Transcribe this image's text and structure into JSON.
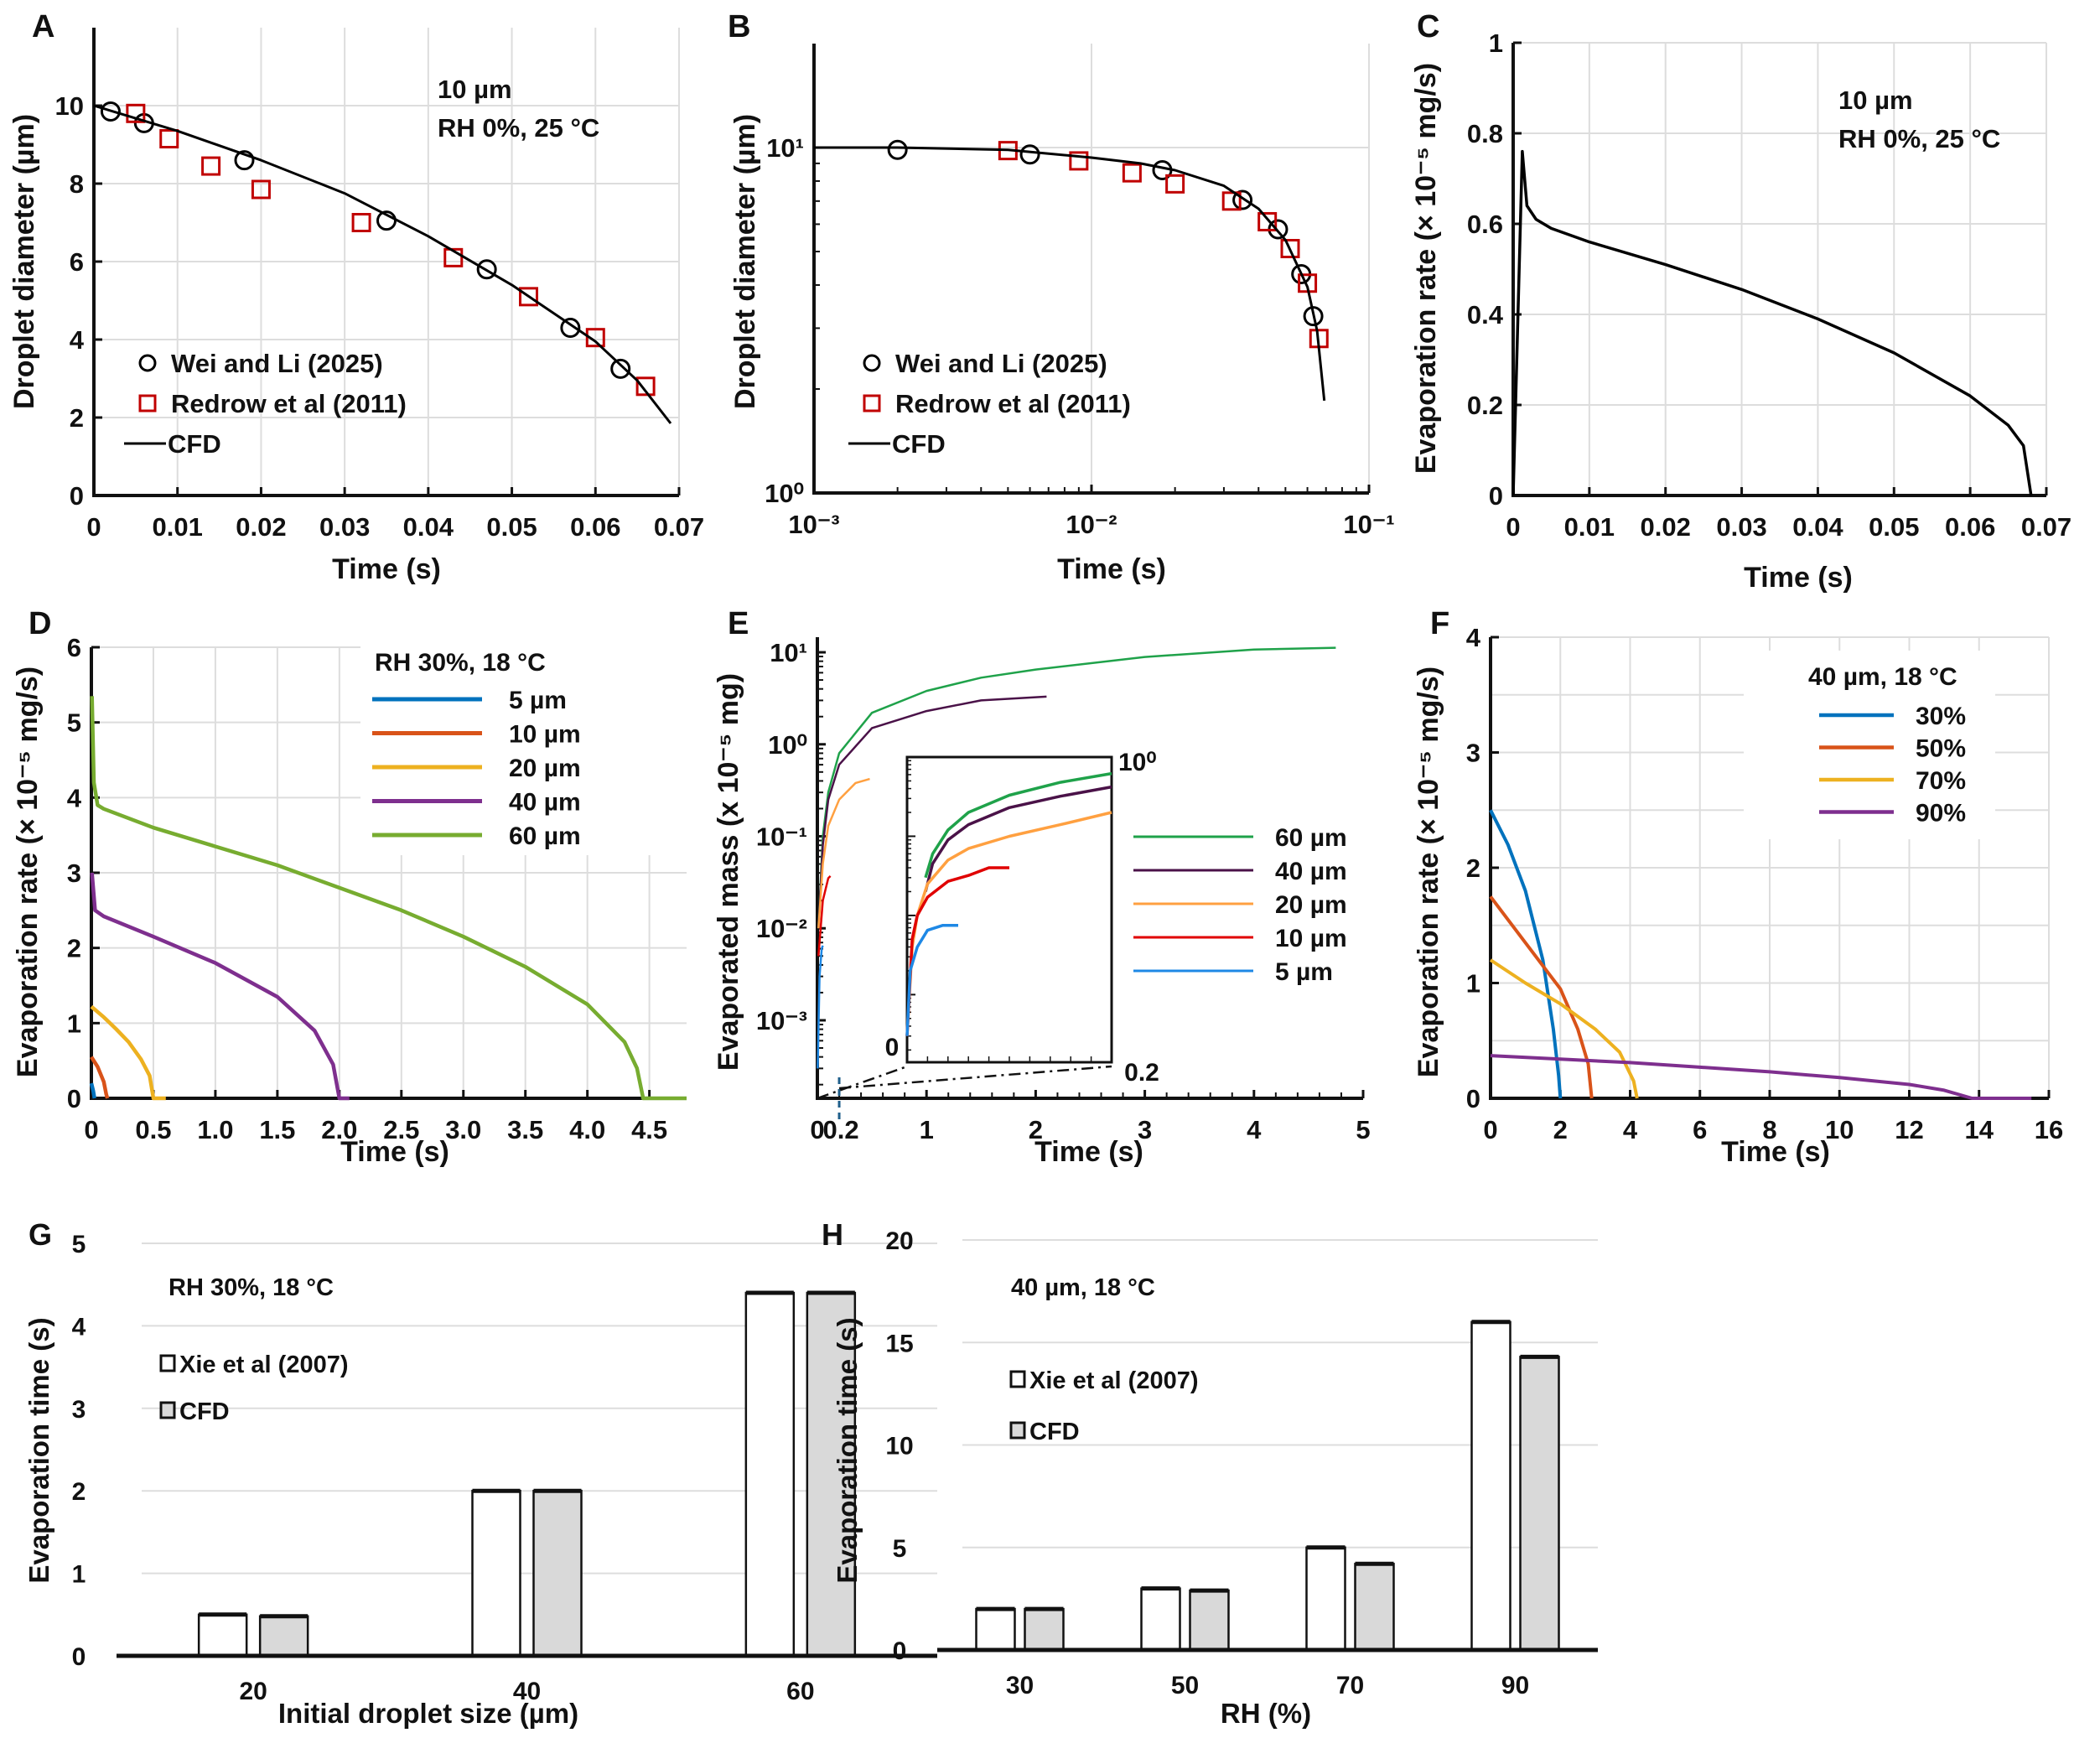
{
  "chart_data": [
    {
      "panel_label": "A",
      "type": "line",
      "xlabel": "Time (s)",
      "ylabel": "Droplet diameter (µm)",
      "xscale": "linear",
      "yscale": "linear",
      "xlim": [
        0,
        0.07
      ],
      "ylim": [
        0,
        12
      ],
      "grid": true,
      "legend": "bottom-left",
      "xticks": [
        0,
        0.01,
        0.02,
        0.03,
        0.04,
        0.05,
        0.06,
        0.07
      ],
      "xtick_labels": [
        "0",
        "0.01",
        "0.02",
        "0.03",
        "0.04",
        "0.05",
        "0.06",
        "0.07"
      ],
      "yticks": [
        0,
        2,
        4,
        6,
        8,
        10
      ],
      "ytick_labels": [
        "0",
        "2",
        "4",
        "6",
        "8",
        "10"
      ],
      "annotations": [
        "10 µm",
        "RH 0%, 25 °C"
      ],
      "series": [
        {
          "name": "Wei and Li (2025)",
          "marker": "circle",
          "color": "#000000",
          "x": [
            0.002,
            0.006,
            0.018,
            0.035,
            0.047,
            0.057,
            0.063
          ],
          "y": [
            9.85,
            9.55,
            8.6,
            7.05,
            5.8,
            4.3,
            3.25
          ]
        },
        {
          "name": "Redrow et al (2011)",
          "marker": "square",
          "color": "#C00000",
          "x": [
            0.005,
            0.009,
            0.014,
            0.02,
            0.032,
            0.043,
            0.052,
            0.06,
            0.066
          ],
          "y": [
            9.8,
            9.15,
            8.45,
            7.85,
            7.0,
            6.1,
            5.1,
            4.05,
            2.8
          ]
        },
        {
          "name": "CFD",
          "marker": "line",
          "color": "#000000",
          "x": [
            0,
            0.01,
            0.02,
            0.03,
            0.04,
            0.05,
            0.06,
            0.065,
            0.069
          ],
          "y": [
            10,
            9.35,
            8.6,
            7.75,
            6.65,
            5.4,
            3.95,
            2.95,
            1.85
          ]
        }
      ]
    },
    {
      "panel_label": "B",
      "type": "line",
      "xlabel": "Time (s)",
      "ylabel": "Droplet diameter (µm)",
      "xscale": "log",
      "yscale": "log",
      "xlim": [
        0.001,
        0.1
      ],
      "ylim": [
        1,
        20
      ],
      "grid": true,
      "legend": "bottom-left",
      "xticks": [
        0.001,
        0.01,
        0.1
      ],
      "xtick_labels": [
        "10⁻³",
        "10⁻²",
        "10⁻¹"
      ],
      "yticks": [
        1,
        10
      ],
      "ytick_labels": [
        "10⁰",
        "10¹"
      ],
      "series": [
        {
          "name": "Wei and Li (2025)",
          "marker": "circle",
          "color": "#000000",
          "x": [
            0.002,
            0.006,
            0.018,
            0.035,
            0.047,
            0.057,
            0.063
          ],
          "y": [
            9.85,
            9.55,
            8.6,
            7.05,
            5.8,
            4.3,
            3.25
          ]
        },
        {
          "name": "Redrow et al (2011)",
          "marker": "square",
          "color": "#C00000",
          "x": [
            0.005,
            0.009,
            0.014,
            0.02,
            0.032,
            0.043,
            0.052,
            0.06,
            0.066
          ],
          "y": [
            9.8,
            9.15,
            8.45,
            7.85,
            7.0,
            6.1,
            5.1,
            4.05,
            2.8
          ]
        },
        {
          "name": "CFD",
          "marker": "line",
          "color": "#000000",
          "x": [
            0.001,
            0.002,
            0.005,
            0.01,
            0.015,
            0.02,
            0.03,
            0.04,
            0.05,
            0.06,
            0.065,
            0.069
          ],
          "y": [
            10,
            10,
            9.85,
            9.35,
            9.0,
            8.6,
            7.75,
            6.65,
            5.4,
            3.95,
            2.95,
            1.85
          ]
        }
      ]
    },
    {
      "panel_label": "C",
      "type": "line",
      "xlabel": "Time (s)",
      "ylabel": "Evaporation rate (× 10⁻⁵ mg/s)",
      "xscale": "linear",
      "yscale": "linear",
      "xlim": [
        0,
        0.07
      ],
      "ylim": [
        0,
        1
      ],
      "grid": true,
      "xticks": [
        0,
        0.01,
        0.02,
        0.03,
        0.04,
        0.05,
        0.06,
        0.07
      ],
      "xtick_labels": [
        "0",
        "0.01",
        "0.02",
        "0.03",
        "0.04",
        "0.05",
        "0.06",
        "0.07"
      ],
      "yticks": [
        0,
        0.2,
        0.4,
        0.6,
        0.8,
        1
      ],
      "ytick_labels": [
        "0",
        "0.2",
        "0.4",
        "0.6",
        "0.8",
        "1"
      ],
      "annotations": [
        "10 µm",
        "RH 0%, 25 °C"
      ],
      "series": [
        {
          "marker": "line",
          "color": "#000000",
          "x": [
            0,
            0.0012,
            0.0018,
            0.003,
            0.005,
            0.01,
            0.02,
            0.03,
            0.04,
            0.05,
            0.06,
            0.065,
            0.067,
            0.068
          ],
          "y": [
            0,
            0.76,
            0.64,
            0.61,
            0.59,
            0.56,
            0.51,
            0.455,
            0.39,
            0.315,
            0.22,
            0.155,
            0.11,
            0
          ]
        }
      ]
    },
    {
      "panel_label": "D",
      "type": "line",
      "xlabel": "Time (s)",
      "ylabel": "Evaporation rate (× 10⁻⁵ mg/s)",
      "xscale": "linear",
      "yscale": "linear",
      "xlim": [
        0,
        4.8
      ],
      "ylim": [
        0,
        6
      ],
      "grid": true,
      "legend": "top-right",
      "legend_title": "RH 30%, 18 °C",
      "xticks": [
        0,
        0.5,
        1,
        1.5,
        2,
        2.5,
        3,
        3.5,
        4,
        4.5
      ],
      "xtick_labels": [
        "0",
        "0.5",
        "1.0",
        "1.5",
        "2.0",
        "2.5",
        "3.0",
        "3.5",
        "4.0",
        "4.5"
      ],
      "yticks": [
        0,
        1,
        2,
        3,
        4,
        5,
        6
      ],
      "ytick_labels": [
        "0",
        "1",
        "2",
        "3",
        "4",
        "5",
        "6"
      ],
      "series": [
        {
          "name": "5 µm",
          "color": "#0072BD",
          "x": [
            0,
            0.015,
            0.025
          ],
          "y": [
            0.2,
            0.1,
            0
          ]
        },
        {
          "name": "10 µm",
          "color": "#D95319",
          "x": [
            0,
            0.05,
            0.1,
            0.12,
            0.13
          ],
          "y": [
            0.55,
            0.42,
            0.22,
            0.05,
            0
          ]
        },
        {
          "name": "20 µm",
          "color": "#EDB120",
          "x": [
            0,
            0.1,
            0.2,
            0.3,
            0.4,
            0.47,
            0.5,
            0.6
          ],
          "y": [
            1.22,
            1.08,
            0.92,
            0.75,
            0.52,
            0.3,
            0,
            0
          ]
        },
        {
          "name": "40 µm",
          "color": "#7E2F8E",
          "x": [
            0.005,
            0.03,
            0.1,
            0.5,
            1.0,
            1.5,
            1.8,
            1.95,
            2.0,
            2.08
          ],
          "y": [
            3.0,
            2.5,
            2.42,
            2.15,
            1.8,
            1.35,
            0.9,
            0.45,
            0,
            0
          ]
        },
        {
          "name": "60 µm",
          "color": "#77AC30",
          "x": [
            0.005,
            0.02,
            0.05,
            0.1,
            0.5,
            1.0,
            1.5,
            2.0,
            2.5,
            3.0,
            3.5,
            4.0,
            4.3,
            4.4,
            4.45,
            4.8
          ],
          "y": [
            5.35,
            4.2,
            3.9,
            3.85,
            3.6,
            3.35,
            3.1,
            2.8,
            2.5,
            2.15,
            1.75,
            1.25,
            0.75,
            0.4,
            0,
            0
          ]
        }
      ]
    },
    {
      "panel_label": "E",
      "type": "line",
      "xlabel": "Time (s)",
      "ylabel": "Evaporated mass (x 10⁻⁵ mg)",
      "xscale": "linear",
      "yscale": "log",
      "xlim": [
        0,
        5
      ],
      "ylim": [
        0.000142,
        14.6
      ],
      "grid": false,
      "legend": "right",
      "xticks": [
        0,
        1,
        2,
        3,
        4,
        5
      ],
      "xtick_labels": [
        "0",
        "1",
        "2",
        "3",
        "4",
        "5"
      ],
      "yticks": [
        0.001,
        0.01,
        0.1,
        1,
        10
      ],
      "ytick_labels": [
        "10⁻³",
        "10⁻²",
        "10⁻¹",
        "10⁰",
        "10¹"
      ],
      "zoom_marker_label": "0.2",
      "series": [
        {
          "name": "60  µm",
          "color": "#1FA24A",
          "x": [
            0.01,
            0.05,
            0.1,
            0.2,
            0.5,
            1,
            1.5,
            2,
            3,
            4,
            4.75
          ],
          "y": [
            0.01,
            0.1,
            0.3,
            0.8,
            2.2,
            3.8,
            5.3,
            6.5,
            8.9,
            10.7,
            11.2
          ]
        },
        {
          "name": "40  µm",
          "color": "#4A1248",
          "x": [
            0.01,
            0.05,
            0.1,
            0.2,
            0.5,
            1,
            1.5,
            2.1
          ],
          "y": [
            0.01,
            0.08,
            0.25,
            0.6,
            1.5,
            2.3,
            3.0,
            3.3
          ]
        },
        {
          "name": "20  µm",
          "color": "#FFA040",
          "x": [
            0.01,
            0.05,
            0.1,
            0.2,
            0.35,
            0.48
          ],
          "y": [
            0.01,
            0.05,
            0.13,
            0.25,
            0.38,
            0.42
          ]
        },
        {
          "name": "10  µm",
          "color": "#E00000",
          "x": [
            0.01,
            0.05,
            0.1,
            0.12
          ],
          "y": [
            0.005,
            0.02,
            0.035,
            0.037
          ]
        },
        {
          "name": "5 µm",
          "color": "#1E88E5",
          "x": [
            0.003,
            0.02,
            0.04,
            0.05
          ],
          "y": [
            0.0003,
            0.003,
            0.006,
            0.0065
          ]
        }
      ]
    },
    {
      "panel_label": "E-inset",
      "type": "line",
      "xscale": "linear",
      "yscale": "log",
      "xlim": [
        0,
        0.2
      ],
      "ylim": [
        0.00014,
        1
      ],
      "grid": false,
      "xtick_labels": [
        "0",
        "0.2"
      ],
      "ytick_labels": [
        "10⁰"
      ],
      "series": [
        {
          "name": "60  µm",
          "color": "#1FA24A",
          "x": [
            0.018,
            0.025,
            0.04,
            0.06,
            0.1,
            0.15,
            0.2
          ],
          "y": [
            0.03,
            0.06,
            0.12,
            0.2,
            0.33,
            0.48,
            0.62
          ]
        },
        {
          "name": "40  µm",
          "color": "#4A1248",
          "x": [
            0.018,
            0.025,
            0.04,
            0.06,
            0.1,
            0.15,
            0.2
          ],
          "y": [
            0.02,
            0.045,
            0.09,
            0.14,
            0.23,
            0.32,
            0.42
          ]
        },
        {
          "name": "20  µm",
          "color": "#FFA040",
          "x": [
            0,
            0.005,
            0.01,
            0.02,
            0.04,
            0.06,
            0.1,
            0.15,
            0.2
          ],
          "y": [
            0.0003,
            0.004,
            0.01,
            0.025,
            0.05,
            0.07,
            0.1,
            0.14,
            0.2
          ]
        },
        {
          "name": "10  µm",
          "color": "#E00000",
          "x": [
            0,
            0.005,
            0.01,
            0.02,
            0.04,
            0.06,
            0.08,
            0.1
          ],
          "y": [
            0.0003,
            0.005,
            0.01,
            0.017,
            0.027,
            0.032,
            0.04,
            0.04
          ]
        },
        {
          "name": "5 µm",
          "color": "#1E88E5",
          "x": [
            0,
            0.003,
            0.01,
            0.02,
            0.035,
            0.05
          ],
          "y": [
            0.0003,
            0.002,
            0.004,
            0.0065,
            0.0075,
            0.0075
          ]
        }
      ]
    },
    {
      "panel_label": "F",
      "type": "line",
      "xlabel": "Time (s)",
      "ylabel": "Evaporation rate (× 10⁻⁵ mg/s)",
      "xscale": "linear",
      "yscale": "linear",
      "xlim": [
        0,
        16
      ],
      "ylim": [
        0,
        4
      ],
      "grid": true,
      "legend": "top-right",
      "legend_title": "40 µm, 18 °C",
      "xticks": [
        0,
        2,
        4,
        6,
        8,
        10,
        12,
        14,
        16
      ],
      "xtick_labels": [
        "0",
        "2",
        "4",
        "6",
        "8",
        "10",
        "12",
        "14",
        "16"
      ],
      "yticks": [
        0,
        1,
        2,
        3,
        4
      ],
      "ytick_labels": [
        "0",
        "1",
        "2",
        "3",
        "4"
      ],
      "series": [
        {
          "name": "30%",
          "color": "#0072BD",
          "x": [
            0,
            0.5,
            1,
            1.5,
            1.8,
            1.95,
            2.0
          ],
          "y": [
            2.5,
            2.2,
            1.8,
            1.2,
            0.6,
            0.2,
            0
          ]
        },
        {
          "name": "50%",
          "color": "#D95319",
          "x": [
            0,
            0.5,
            1,
            1.5,
            2,
            2.5,
            2.8,
            2.9
          ],
          "y": [
            1.75,
            1.55,
            1.35,
            1.15,
            0.95,
            0.6,
            0.3,
            0
          ]
        },
        {
          "name": "70%",
          "color": "#EDB120",
          "x": [
            0,
            1,
            2,
            3,
            3.7,
            4.1,
            4.2
          ],
          "y": [
            1.2,
            1.0,
            0.82,
            0.6,
            0.4,
            0.15,
            0
          ]
        },
        {
          "name": "90%",
          "color": "#7E2F8E",
          "x": [
            0,
            2,
            4,
            6,
            8,
            10,
            12,
            13,
            13.8,
            15.5
          ],
          "y": [
            0.37,
            0.34,
            0.31,
            0.27,
            0.23,
            0.18,
            0.12,
            0.07,
            0,
            0
          ]
        }
      ]
    },
    {
      "panel_label": "G",
      "type": "bar",
      "xlabel": "Initial droplet size (µm)",
      "ylabel": "Evaporation time (s)",
      "ylim": [
        0,
        5
      ],
      "grid": true,
      "legend": "top-left",
      "annotations": [
        "RH 30%, 18 °C"
      ],
      "categories": [
        "20",
        "40",
        "60"
      ],
      "yticks": [
        0,
        1,
        2,
        3,
        4,
        5
      ],
      "ytick_labels": [
        "0",
        "1",
        "2",
        "3",
        "4",
        "5"
      ],
      "series": [
        {
          "name": "Xie et al (2007)",
          "color": "#FFFFFF",
          "values": [
            0.5,
            2.0,
            4.4
          ]
        },
        {
          "name": "CFD",
          "color": "#D9D9D9",
          "values": [
            0.48,
            2.0,
            4.4
          ]
        }
      ]
    },
    {
      "panel_label": "H",
      "type": "bar",
      "xlabel": "RH (%)",
      "ylabel": "Evaporation time (s)",
      "ylim": [
        0,
        20
      ],
      "grid": true,
      "legend": "top-left",
      "annotations": [
        "40 µm, 18 °C"
      ],
      "categories": [
        "30",
        "50",
        "70",
        "90"
      ],
      "yticks": [
        0,
        5,
        10,
        15,
        20
      ],
      "ytick_labels": [
        "0",
        "5",
        "10",
        "15",
        "20"
      ],
      "series": [
        {
          "name": "Xie et al (2007)",
          "color": "#FFFFFF",
          "values": [
            2.0,
            3.0,
            5.0,
            16.0
          ]
        },
        {
          "name": "CFD",
          "color": "#D9D9D9",
          "values": [
            2.0,
            2.9,
            4.2,
            14.3
          ]
        }
      ]
    }
  ]
}
